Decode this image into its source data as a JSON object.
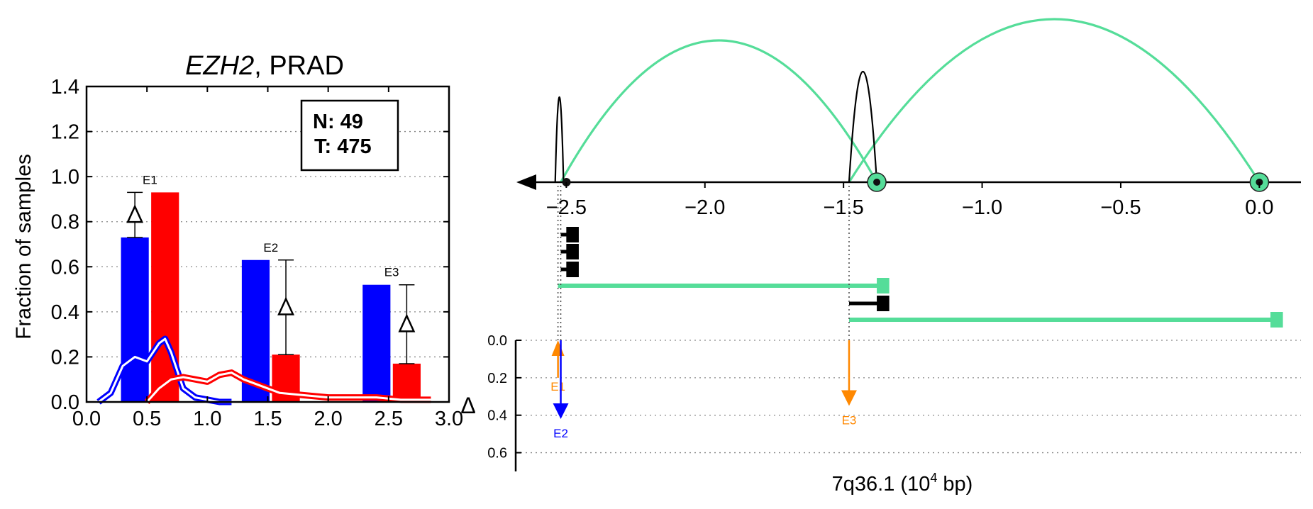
{
  "colors": {
    "normal": "#0000ff",
    "tumor": "#ff0000",
    "isoform_green": "#55dd99",
    "delta_orange": "#ff8800",
    "black": "#000000",
    "grid": "#888888"
  },
  "chart_data": [
    {
      "type": "bar",
      "title_gene": "EZH2",
      "title_rest": ", PRAD",
      "ylabel": "Fraction of samples",
      "xlim": [
        0.0,
        3.0
      ],
      "ylim": [
        0.0,
        1.4
      ],
      "x_ticks": [
        0.0,
        0.5,
        1.0,
        1.5,
        2.0,
        2.5,
        3.0
      ],
      "x_tick_labels": [
        "0.0",
        "0.5",
        "1.0",
        "1.5",
        "2.0",
        "2.5",
        "3.0"
      ],
      "y_ticks": [
        0.0,
        0.2,
        0.4,
        0.6,
        0.8,
        1.0,
        1.2,
        1.4
      ],
      "y_tick_labels": [
        "0.0",
        "0.2",
        "0.4",
        "0.6",
        "0.8",
        "1.0",
        "1.2",
        "1.4"
      ],
      "grid": "horizontal-dotted",
      "legend_box": {
        "n_label": "N: 49",
        "t_label": "T: 475",
        "placement": "top-right"
      },
      "bar_width": 0.23,
      "groups": [
        {
          "label": "E1",
          "normal": {
            "x": 0.4,
            "value": 0.73
          },
          "tumor": {
            "x": 0.65,
            "value": 0.93
          },
          "delta": {
            "x": 0.4,
            "value": 0.2
          }
        },
        {
          "label": "E2",
          "normal": {
            "x": 1.4,
            "value": 0.63
          },
          "tumor": {
            "x": 1.65,
            "value": 0.21
          },
          "delta": {
            "x": 1.65,
            "value": 0.42
          }
        },
        {
          "label": "E3",
          "normal": {
            "x": 2.4,
            "value": 0.52
          },
          "tumor": {
            "x": 2.65,
            "value": 0.17
          },
          "delta": {
            "x": 2.65,
            "value": 0.35
          }
        }
      ],
      "density_lines": [
        {
          "series": "normal",
          "x": [
            0.1,
            0.2,
            0.3,
            0.4,
            0.5,
            0.6,
            0.65,
            0.7,
            0.8,
            0.9,
            1.0,
            1.1,
            1.2
          ],
          "y": [
            0.0,
            0.04,
            0.16,
            0.2,
            0.18,
            0.26,
            0.28,
            0.22,
            0.06,
            0.02,
            0.01,
            0.0,
            0.0
          ]
        },
        {
          "series": "tumor",
          "x": [
            0.5,
            0.6,
            0.7,
            0.8,
            0.9,
            1.0,
            1.1,
            1.2,
            1.3,
            1.5,
            1.6,
            1.8,
            2.0,
            2.4,
            2.6,
            2.85
          ],
          "y": [
            0.0,
            0.06,
            0.1,
            0.11,
            0.1,
            0.09,
            0.12,
            0.13,
            0.1,
            0.06,
            0.04,
            0.03,
            0.02,
            0.02,
            0.01,
            0.01
          ]
        }
      ]
    },
    {
      "type": "line",
      "xlabel_prefix": "7q36.1 (10",
      "xlabel_exp": "4",
      "xlabel_suffix": " bp)",
      "xlim": [
        -2.68,
        0.15
      ],
      "x_ticks": [
        -2.5,
        -2.0,
        -1.5,
        -1.0,
        -0.5,
        0.0
      ],
      "x_tick_labels": [
        "−2.5",
        "−2.0",
        "−1.5",
        "−1.0",
        "−0.5",
        "0.0"
      ],
      "strand": "minus",
      "exons": [
        {
          "label": "E1",
          "x": -2.53
        },
        {
          "label": "E2",
          "x": -2.52
        },
        {
          "label": "E3",
          "x": -1.48
        }
      ],
      "junction_arcs": [
        {
          "from": -2.52,
          "to": -1.38,
          "color": "isoform_green",
          "height": 1.0
        },
        {
          "from": -1.48,
          "to": 0.0,
          "color": "isoform_green",
          "height": 1.15
        },
        {
          "from": -2.54,
          "to": -2.51,
          "color": "black",
          "height": 0.6
        },
        {
          "from": -1.48,
          "to": -1.38,
          "color": "black",
          "height": 0.78
        }
      ],
      "splice_sites": [
        {
          "x": -2.52,
          "kind": "small"
        },
        {
          "x": -1.38,
          "kind": "green"
        },
        {
          "x": 0.0,
          "kind": "green"
        }
      ],
      "isoforms": [
        {
          "x_start": -2.52,
          "x_end": -2.48,
          "color": "black",
          "exon_width": 0.05,
          "row": 0
        },
        {
          "x_start": -2.52,
          "x_end": -2.48,
          "color": "black",
          "exon_width": 0.05,
          "row": 1
        },
        {
          "x_start": -2.52,
          "x_end": -2.48,
          "color": "black",
          "exon_width": 0.05,
          "row": 2
        },
        {
          "x_start": -2.53,
          "x_end": -1.36,
          "color": "isoform_green",
          "exon_width": 0.05,
          "row": 3
        },
        {
          "x_start": -1.48,
          "x_end": -1.36,
          "color": "black",
          "exon_width": 0.05,
          "row": 4
        },
        {
          "x_start": -1.48,
          "x_end": 0.06,
          "color": "isoform_green",
          "exon_width": 0.05,
          "row": 5
        }
      ],
      "delta_panel": {
        "ylabel": "Δ",
        "ylim": [
          0.0,
          0.7
        ],
        "y_ticks": [
          0.0,
          0.2,
          0.4,
          0.6
        ],
        "y_tick_labels": [
          "0.0",
          "0.2",
          "0.4",
          "0.6"
        ],
        "arrows": [
          {
            "label": "E1",
            "x": -2.53,
            "value": 0.2,
            "color": "delta_orange",
            "direction": "up"
          },
          {
            "label": "E2",
            "x": -2.52,
            "value": 0.42,
            "color": "normal",
            "direction": "down"
          },
          {
            "label": "E3",
            "x": -1.48,
            "value": 0.35,
            "color": "delta_orange",
            "direction": "down"
          }
        ]
      }
    }
  ]
}
